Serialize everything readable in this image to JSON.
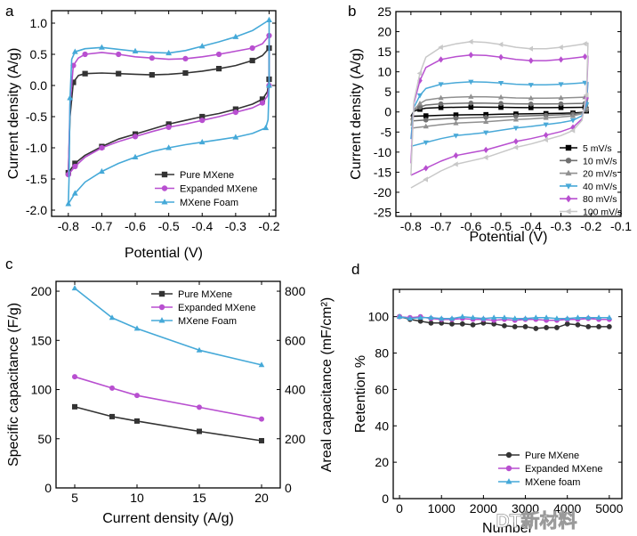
{
  "figure": {
    "watermark": "DT新材料"
  },
  "chart_data": [
    {
      "panel": "a",
      "type": "line",
      "xlabel": "Potential (V)",
      "ylabel": "Current density (A/g)",
      "xlim": [
        -0.85,
        -0.18
      ],
      "ylim": [
        -2.1,
        1.2
      ],
      "xticks": [
        -0.8,
        -0.7,
        -0.6,
        -0.5,
        -0.4,
        -0.3,
        -0.2
      ],
      "xticklabels": [
        "-0.8",
        "-0.7",
        "-0.6",
        "-0.5",
        "-0.4",
        "-0.3",
        "-0.2"
      ],
      "yticks": [
        -2.0,
        -1.5,
        -1.0,
        -0.5,
        0.0,
        0.5,
        1.0
      ],
      "yticklabels": [
        "-2.0",
        "-1.5",
        "-1.0",
        "-0.5",
        "0.0",
        "0.5",
        "1.0"
      ],
      "legend_position": "bottom-right",
      "series": [
        {
          "name": "Pure MXene",
          "color": "#333333",
          "marker": "square",
          "upper": [
            [
              -0.8,
              -1.4
            ],
            [
              -0.795,
              -0.5
            ],
            [
              -0.785,
              0.05
            ],
            [
              -0.77,
              0.16
            ],
            [
              -0.75,
              0.19
            ],
            [
              -0.7,
              0.2
            ],
            [
              -0.65,
              0.19
            ],
            [
              -0.6,
              0.18
            ],
            [
              -0.55,
              0.17
            ],
            [
              -0.5,
              0.18
            ],
            [
              -0.45,
              0.2
            ],
            [
              -0.4,
              0.23
            ],
            [
              -0.35,
              0.27
            ],
            [
              -0.3,
              0.32
            ],
            [
              -0.25,
              0.4
            ],
            [
              -0.22,
              0.48
            ],
            [
              -0.2,
              0.6
            ]
          ],
          "lower": [
            [
              -0.2,
              0.6
            ],
            [
              -0.2,
              0.1
            ],
            [
              -0.205,
              -0.1
            ],
            [
              -0.22,
              -0.22
            ],
            [
              -0.25,
              -0.3
            ],
            [
              -0.3,
              -0.38
            ],
            [
              -0.35,
              -0.45
            ],
            [
              -0.4,
              -0.5
            ],
            [
              -0.45,
              -0.56
            ],
            [
              -0.5,
              -0.62
            ],
            [
              -0.55,
              -0.7
            ],
            [
              -0.6,
              -0.78
            ],
            [
              -0.65,
              -0.86
            ],
            [
              -0.7,
              -0.98
            ],
            [
              -0.75,
              -1.12
            ],
            [
              -0.78,
              -1.25
            ],
            [
              -0.8,
              -1.4
            ]
          ]
        },
        {
          "name": "Expanded MXene",
          "color": "#b84fd0",
          "marker": "circle",
          "upper": [
            [
              -0.8,
              -1.43
            ],
            [
              -0.795,
              -0.3
            ],
            [
              -0.785,
              0.32
            ],
            [
              -0.77,
              0.44
            ],
            [
              -0.75,
              0.5
            ],
            [
              -0.7,
              0.53
            ],
            [
              -0.65,
              0.5
            ],
            [
              -0.6,
              0.46
            ],
            [
              -0.55,
              0.44
            ],
            [
              -0.5,
              0.42
            ],
            [
              -0.45,
              0.43
            ],
            [
              -0.4,
              0.46
            ],
            [
              -0.35,
              0.5
            ],
            [
              -0.3,
              0.55
            ],
            [
              -0.25,
              0.6
            ],
            [
              -0.22,
              0.67
            ],
            [
              -0.2,
              0.8
            ]
          ],
          "lower": [
            [
              -0.2,
              0.8
            ],
            [
              -0.2,
              0.0
            ],
            [
              -0.205,
              -0.17
            ],
            [
              -0.22,
              -0.28
            ],
            [
              -0.25,
              -0.36
            ],
            [
              -0.3,
              -0.43
            ],
            [
              -0.35,
              -0.5
            ],
            [
              -0.4,
              -0.56
            ],
            [
              -0.45,
              -0.62
            ],
            [
              -0.5,
              -0.67
            ],
            [
              -0.55,
              -0.74
            ],
            [
              -0.6,
              -0.82
            ],
            [
              -0.65,
              -0.9
            ],
            [
              -0.7,
              -1.0
            ],
            [
              -0.75,
              -1.15
            ],
            [
              -0.78,
              -1.3
            ],
            [
              -0.8,
              -1.43
            ]
          ]
        },
        {
          "name": "MXene Foam",
          "color": "#45a9d8",
          "marker": "triangle",
          "upper": [
            [
              -0.8,
              -1.9
            ],
            [
              -0.798,
              -1.5
            ],
            [
              -0.795,
              -0.2
            ],
            [
              -0.79,
              0.42
            ],
            [
              -0.78,
              0.54
            ],
            [
              -0.75,
              0.59
            ],
            [
              -0.7,
              0.61
            ],
            [
              -0.65,
              0.58
            ],
            [
              -0.6,
              0.55
            ],
            [
              -0.55,
              0.53
            ],
            [
              -0.5,
              0.52
            ],
            [
              -0.45,
              0.56
            ],
            [
              -0.4,
              0.63
            ],
            [
              -0.35,
              0.7
            ],
            [
              -0.3,
              0.78
            ],
            [
              -0.25,
              0.88
            ],
            [
              -0.2,
              1.05
            ]
          ],
          "lower": [
            [
              -0.2,
              1.05
            ],
            [
              -0.2,
              0.0
            ],
            [
              -0.203,
              -0.55
            ],
            [
              -0.21,
              -0.68
            ],
            [
              -0.25,
              -0.77
            ],
            [
              -0.3,
              -0.83
            ],
            [
              -0.35,
              -0.87
            ],
            [
              -0.4,
              -0.91
            ],
            [
              -0.45,
              -0.95
            ],
            [
              -0.5,
              -1.0
            ],
            [
              -0.55,
              -1.06
            ],
            [
              -0.6,
              -1.15
            ],
            [
              -0.65,
              -1.25
            ],
            [
              -0.7,
              -1.38
            ],
            [
              -0.75,
              -1.55
            ],
            [
              -0.78,
              -1.73
            ],
            [
              -0.8,
              -1.9
            ]
          ]
        }
      ]
    },
    {
      "panel": "b",
      "type": "line",
      "xlabel": "Potential (V)",
      "ylabel": "Current density (A/g)",
      "xlim": [
        -0.85,
        -0.1
      ],
      "ylim": [
        -26,
        25
      ],
      "xticks": [
        -0.8,
        -0.7,
        -0.6,
        -0.5,
        -0.4,
        -0.3,
        -0.2,
        -0.1
      ],
      "xticklabels": [
        "-0.8",
        "-0.7",
        "-0.6",
        "-0.5",
        "-0.4",
        "-0.3",
        "-0.2",
        "-0.1"
      ],
      "yticks": [
        -25,
        -20,
        -15,
        -10,
        -5,
        0,
        5,
        10,
        15,
        20,
        25
      ],
      "yticklabels": [
        "-25",
        "-20",
        "-15",
        "-10",
        "-5",
        "0",
        "5",
        "10",
        "15",
        "20",
        "25"
      ],
      "legend_position": "bottom-right",
      "series": [
        {
          "name": "5 mV/s",
          "color": "#000000",
          "marker": "square",
          "upper_peak": 1.2,
          "lower_min": -1.2
        },
        {
          "name": "10 mV/s",
          "color": "#707070",
          "marker": "circle",
          "upper_peak": 2.2,
          "lower_min": -2.5
        },
        {
          "name": "20 mV/s",
          "color": "#909090",
          "marker": "triangle",
          "upper_peak": 3.8,
          "lower_min": -4.5
        },
        {
          "name": "40 mV/s",
          "color": "#49a9d8",
          "marker": "triangle-down",
          "upper_peak": 7.5,
          "lower_min": -9.5
        },
        {
          "name": "80 mV/s",
          "color": "#b84fd0",
          "marker": "diamond",
          "upper_peak": 14.2,
          "lower_min": -17.5
        },
        {
          "name": "100 mV/s",
          "color": "#c8c8c8",
          "marker": "triangle-left",
          "upper_peak": 17.5,
          "lower_min": -21.0
        }
      ]
    },
    {
      "panel": "c",
      "type": "line",
      "xlabel": "Current density (A/g)",
      "ylabel": "Specific capacitance (F/g)",
      "ylabel_right": "Areal capacitance (mF/cm²)",
      "xlim": [
        3.5,
        21.5
      ],
      "ylim": [
        0,
        210
      ],
      "ylim_right": [
        0,
        840
      ],
      "xticks": [
        5,
        10,
        15,
        20
      ],
      "yticks": [
        0,
        50,
        100,
        150,
        200
      ],
      "yticks_right": [
        0,
        200,
        400,
        600,
        800
      ],
      "legend_position": "top-right",
      "categories": [
        5,
        8,
        10,
        15,
        20
      ],
      "series": [
        {
          "name": "Pure MXene",
          "color": "#333333",
          "marker": "square",
          "values": [
            82.5,
            72.5,
            68,
            57.5,
            48
          ]
        },
        {
          "name": "Expanded MXene",
          "color": "#b84fd0",
          "marker": "circle",
          "values": [
            113,
            101.5,
            94,
            82,
            70
          ]
        },
        {
          "name": "MXene Foam",
          "color": "#45a9d8",
          "marker": "triangle",
          "values": [
            203,
            173,
            162,
            140,
            125
          ]
        }
      ]
    },
    {
      "panel": "d",
      "type": "line",
      "xlabel": "Number",
      "ylabel": "Retention %",
      "xlim": [
        -150,
        5300
      ],
      "ylim": [
        0,
        115
      ],
      "xticks": [
        0,
        1000,
        2000,
        3000,
        4000,
        5000
      ],
      "yticks": [
        0,
        20,
        40,
        60,
        80,
        100
      ],
      "legend_position": "bottom-right",
      "x": [
        0,
        250,
        500,
        750,
        1000,
        1250,
        1500,
        1750,
        2000,
        2250,
        2500,
        2750,
        3000,
        3250,
        3500,
        3750,
        4000,
        4250,
        4500,
        4750,
        5000
      ],
      "series": [
        {
          "name": "Pure MXene",
          "color": "#333333",
          "marker": "circle",
          "values": [
            100,
            98.5,
            97.5,
            96.5,
            96.5,
            96,
            96,
            95.5,
            96.5,
            96,
            95,
            94.5,
            94.5,
            93.5,
            94,
            94,
            96,
            95.5,
            94.5,
            94.5,
            94.5
          ]
        },
        {
          "name": "Expanded MXene",
          "color": "#b84fd0",
          "marker": "circle",
          "values": [
            100,
            99.5,
            100,
            99,
            98.5,
            98.5,
            99,
            98.5,
            98.5,
            98,
            98.5,
            98,
            98.5,
            98.5,
            98,
            98,
            98.5,
            98.5,
            99,
            98.5,
            98.5
          ]
        },
        {
          "name": "MXene foam",
          "color": "#45a9d8",
          "marker": "triangle",
          "values": [
            100,
            99,
            99.5,
            99.5,
            99,
            99,
            100,
            99.5,
            99,
            99.5,
            99.5,
            99,
            99,
            99.5,
            99.5,
            99,
            99,
            99.5,
            99.5,
            99.5,
            99.5
          ]
        }
      ]
    }
  ]
}
